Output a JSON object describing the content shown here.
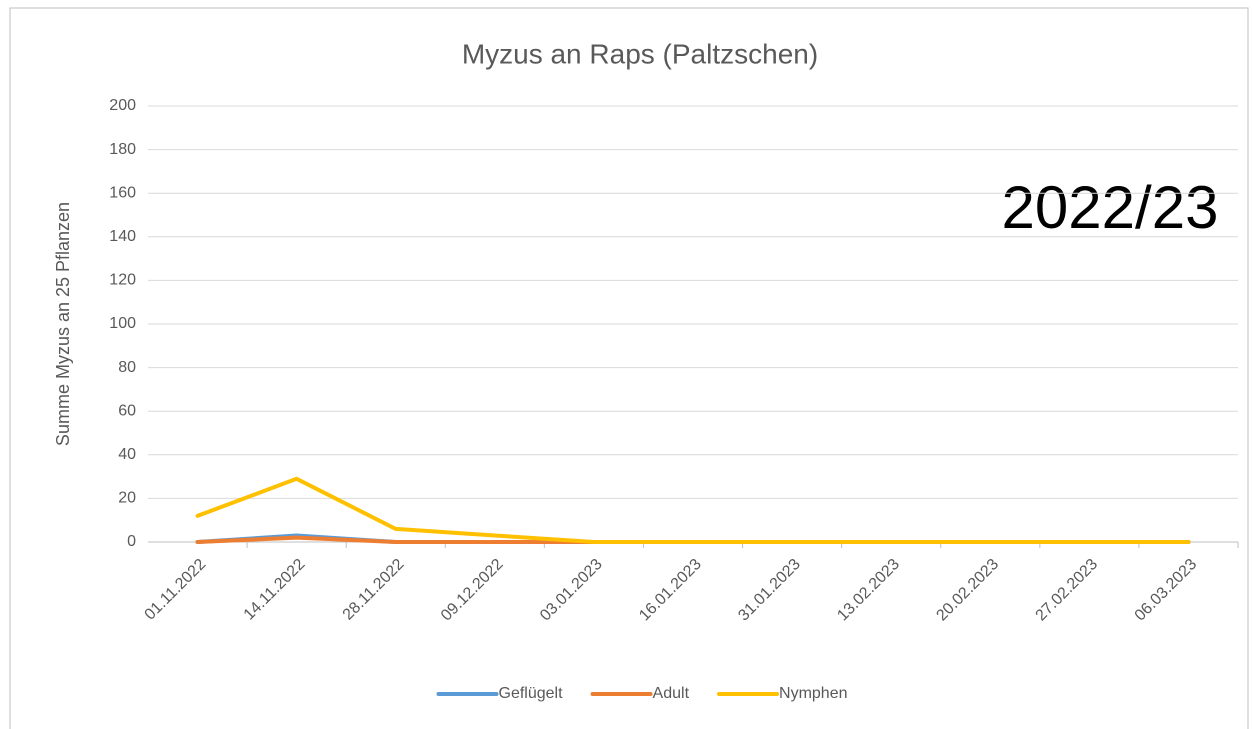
{
  "chart_data": {
    "type": "line",
    "title": "Myzus an Raps (Paltzschen)",
    "annotation": "2022/23",
    "y_label": "Summe Myzus an 25 Pflanzen",
    "categories": [
      "01.11.2022",
      "14.11.2022",
      "28.11.2022",
      "09.12.2022",
      "03.01.2023",
      "16.01.2023",
      "31.01.2023",
      "13.02.2023",
      "20.02.2023",
      "27.02.2023",
      "06.03.2023"
    ],
    "series": [
      {
        "name": "Geflügelt",
        "color": "#5b9bd5",
        "values": [
          0,
          3,
          0,
          0,
          0,
          0,
          0,
          0,
          0,
          0,
          0
        ]
      },
      {
        "name": "Adult",
        "color": "#ed7d31",
        "values": [
          0,
          2,
          0,
          0,
          0,
          0,
          0,
          0,
          0,
          0,
          0
        ]
      },
      {
        "name": "Nymphen",
        "color": "#ffc000",
        "values": [
          12,
          29,
          6,
          3,
          0,
          0,
          0,
          0,
          0,
          0,
          0
        ]
      }
    ],
    "ylim": [
      0,
      200
    ],
    "yticks": [
      0,
      20,
      40,
      60,
      80,
      100,
      120,
      140,
      160,
      180,
      200
    ],
    "grid": true,
    "legend": "bottom"
  }
}
